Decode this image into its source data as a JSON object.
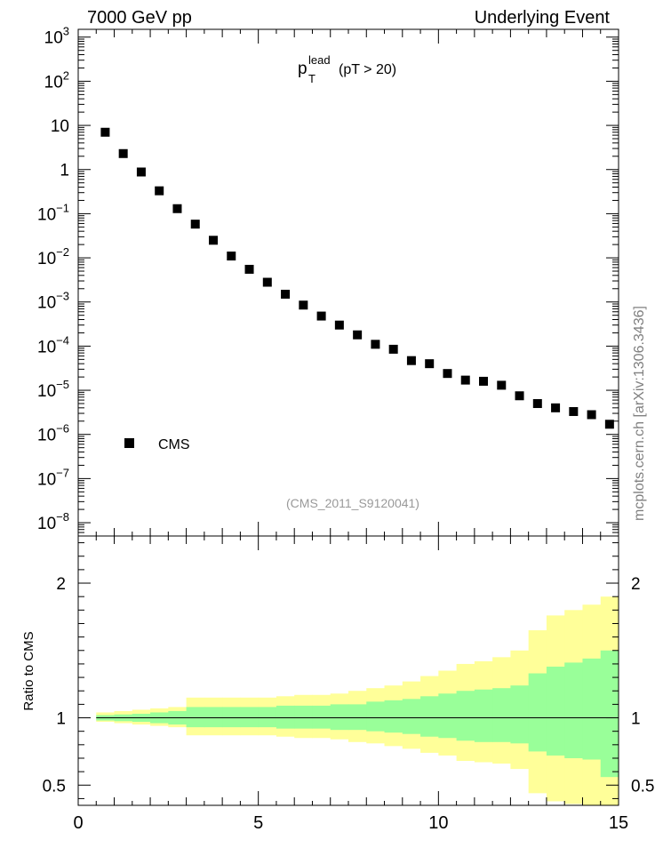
{
  "header": {
    "left": "7000 GeV pp",
    "right": "Underlying Event"
  },
  "plot_title": {
    "main": "p",
    "sup": "lead",
    "sub": "T",
    "suffix": "(pT > 20)"
  },
  "analysis_id": "(CMS_2011_S9120041)",
  "watermark": "mcplots.cern.ch [arXiv:1306.3436]",
  "colors": {
    "marker": "#000000",
    "band_inner": "#99ff99",
    "band_outer": "#ffff99",
    "analysis_text": "#999999",
    "watermark_text": "#808080"
  },
  "chart_data": [
    {
      "type": "scatter",
      "log_y": true,
      "xlim": [
        0,
        15
      ],
      "ylim": [
        5e-09,
        1500
      ],
      "y_ticks": [
        {
          "value": 1e-08,
          "label": "10",
          "exp": "−8"
        },
        {
          "value": 1e-07,
          "label": "10",
          "exp": "−7"
        },
        {
          "value": 1e-06,
          "label": "10",
          "exp": "−6"
        },
        {
          "value": 1e-05,
          "label": "10",
          "exp": "−5"
        },
        {
          "value": 0.0001,
          "label": "10",
          "exp": "−4"
        },
        {
          "value": 0.001,
          "label": "10",
          "exp": "−3"
        },
        {
          "value": 0.01,
          "label": "10",
          "exp": "−2"
        },
        {
          "value": 0.1,
          "label": "10",
          "exp": "−1"
        },
        {
          "value": 1,
          "label": "1",
          "exp": ""
        },
        {
          "value": 10,
          "label": "10",
          "exp": ""
        },
        {
          "value": 100,
          "label": "10",
          "exp": "2"
        },
        {
          "value": 1000,
          "label": "10",
          "exp": "3"
        }
      ],
      "legend": {
        "position": "bottom-left",
        "entries": [
          "CMS"
        ]
      },
      "series": [
        {
          "name": "CMS",
          "x": [
            0.75,
            1.25,
            1.75,
            2.25,
            2.75,
            3.25,
            3.75,
            4.25,
            4.75,
            5.25,
            5.75,
            6.25,
            6.75,
            7.25,
            7.75,
            8.25,
            8.75,
            9.25,
            9.75,
            10.25,
            10.75,
            11.25,
            11.75,
            12.25,
            12.75,
            13.25,
            13.75,
            14.25,
            14.75
          ],
          "y": [
            7.0,
            2.3,
            0.88,
            0.33,
            0.13,
            0.058,
            0.025,
            0.011,
            0.0055,
            0.0028,
            0.0015,
            0.00085,
            0.00048,
            0.0003,
            0.00018,
            0.00011,
            8.5e-05,
            4.7e-05,
            4e-05,
            2.4e-05,
            1.7e-05,
            1.6e-05,
            1.3e-05,
            7.5e-06,
            5e-06,
            4e-06,
            3.3e-06,
            2.8e-06,
            1.7e-06
          ]
        }
      ]
    },
    {
      "type": "area",
      "ylabel": "Ratio to CMS",
      "xlim": [
        0,
        15
      ],
      "ylim": [
        0.35,
        2.35
      ],
      "x_ticks": [
        0,
        5,
        10,
        15
      ],
      "y_ticks": [
        0.5,
        1,
        2
      ],
      "reference_line": 1,
      "bins": [
        0.5,
        1.0,
        1.5,
        2.0,
        2.5,
        3.0,
        3.5,
        4.0,
        4.5,
        5.0,
        5.5,
        6.0,
        6.5,
        7.0,
        7.5,
        8.0,
        8.5,
        9.0,
        9.5,
        10.0,
        10.5,
        11.0,
        11.5,
        12.0,
        12.5,
        13.0,
        13.5,
        14.0,
        14.5,
        15.0
      ],
      "series": [
        {
          "band": "outer",
          "upper": [
            1.04,
            1.05,
            1.06,
            1.07,
            1.08,
            1.15,
            1.15,
            1.15,
            1.15,
            1.15,
            1.16,
            1.17,
            1.17,
            1.18,
            1.2,
            1.22,
            1.24,
            1.27,
            1.31,
            1.35,
            1.4,
            1.42,
            1.45,
            1.5,
            1.65,
            1.76,
            1.8,
            1.84,
            1.9
          ],
          "lower": [
            0.97,
            0.96,
            0.95,
            0.94,
            0.93,
            0.87,
            0.87,
            0.87,
            0.87,
            0.87,
            0.86,
            0.85,
            0.85,
            0.84,
            0.82,
            0.81,
            0.79,
            0.77,
            0.74,
            0.72,
            0.68,
            0.67,
            0.66,
            0.62,
            0.44,
            0.38,
            0.36,
            0.34,
            0.33
          ]
        },
        {
          "band": "inner",
          "upper": [
            1.02,
            1.025,
            1.03,
            1.04,
            1.05,
            1.08,
            1.08,
            1.08,
            1.08,
            1.08,
            1.09,
            1.09,
            1.09,
            1.1,
            1.1,
            1.12,
            1.13,
            1.14,
            1.16,
            1.18,
            1.2,
            1.21,
            1.22,
            1.24,
            1.33,
            1.38,
            1.41,
            1.44,
            1.5
          ],
          "lower": [
            0.98,
            0.975,
            0.97,
            0.96,
            0.95,
            0.93,
            0.93,
            0.93,
            0.93,
            0.93,
            0.92,
            0.92,
            0.92,
            0.91,
            0.91,
            0.9,
            0.89,
            0.88,
            0.86,
            0.85,
            0.83,
            0.82,
            0.82,
            0.81,
            0.75,
            0.72,
            0.7,
            0.69,
            0.56
          ]
        }
      ]
    }
  ]
}
